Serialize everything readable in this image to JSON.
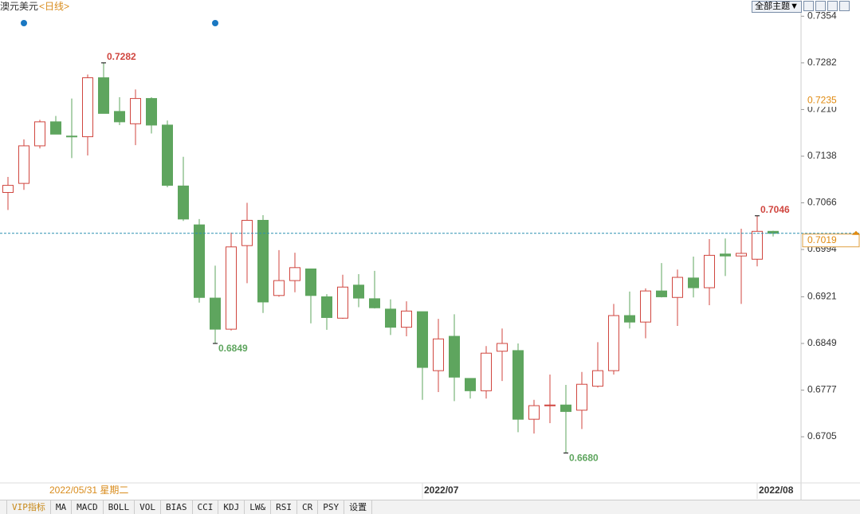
{
  "chart_data": {
    "type": "candlestick",
    "title": "澳元美元",
    "subtitle": "<日线>",
    "categories": [
      null,
      null,
      null,
      null,
      null,
      null,
      null,
      null,
      null,
      null,
      null,
      null,
      null,
      null,
      null,
      null,
      null,
      null,
      null,
      null,
      null,
      null,
      null,
      null,
      null,
      null,
      "2022/07",
      null,
      null,
      null,
      null,
      null,
      null,
      null,
      null,
      null,
      null,
      null,
      null,
      null,
      null,
      null,
      null,
      null,
      null,
      null,
      null,
      "2022/08",
      null
    ],
    "open": [
      0.7082,
      0.7096,
      0.7154,
      0.7191,
      0.7169,
      0.7168,
      0.7259,
      0.7207,
      0.7188,
      0.7227,
      0.7186,
      0.7092,
      0.7032,
      0.6919,
      0.6871,
      0.7,
      0.7039,
      0.6923,
      0.6946,
      0.6964,
      0.6921,
      0.6888,
      0.6939,
      0.6918,
      0.6902,
      0.6874,
      0.6898,
      0.6807,
      0.686,
      0.6795,
      0.6776,
      0.6837,
      0.6838,
      0.6732,
      0.6753,
      0.6754,
      0.6746,
      0.6783,
      0.6807,
      0.6892,
      0.6882,
      0.693,
      0.692,
      0.695,
      0.6935,
      0.6987,
      0.6984,
      0.6979,
      0.7022
    ],
    "high": [
      0.7106,
      0.7164,
      0.7194,
      0.72,
      0.7227,
      0.7264,
      0.7282,
      0.7229,
      0.7241,
      0.7229,
      0.7193,
      0.7137,
      0.7041,
      0.6969,
      0.702,
      0.7066,
      0.7047,
      0.6993,
      0.6989,
      0.6964,
      0.6925,
      0.6955,
      0.6956,
      0.6961,
      0.6917,
      0.6914,
      0.6898,
      0.6887,
      0.6894,
      0.6795,
      0.6845,
      0.6872,
      0.6849,
      0.6762,
      0.6801,
      0.6785,
      0.6805,
      0.6851,
      0.691,
      0.6929,
      0.6934,
      0.6973,
      0.6963,
      0.6983,
      0.701,
      0.7011,
      0.7026,
      0.7046,
      0.7023
    ],
    "low": [
      0.7055,
      0.7086,
      0.715,
      0.7172,
      0.7135,
      0.7139,
      0.7204,
      0.7186,
      0.7155,
      0.7173,
      0.709,
      0.7038,
      0.6912,
      0.6849,
      0.6869,
      0.6942,
      0.6896,
      0.6921,
      0.6928,
      0.688,
      0.687,
      0.6887,
      0.6905,
      0.6903,
      0.6862,
      0.686,
      0.6762,
      0.6774,
      0.676,
      0.6764,
      0.6764,
      0.6791,
      0.6712,
      0.671,
      0.6726,
      0.668,
      0.6717,
      0.6781,
      0.6801,
      0.6872,
      0.6857,
      0.692,
      0.6876,
      0.692,
      0.6908,
      0.6953,
      0.691,
      0.6968,
      0.7014
    ],
    "close": [
      0.7093,
      0.7154,
      0.7191,
      0.7172,
      0.7168,
      0.7259,
      0.7204,
      0.7191,
      0.7227,
      0.7186,
      0.7093,
      0.7041,
      0.692,
      0.6871,
      0.6998,
      0.7039,
      0.6913,
      0.6946,
      0.6966,
      0.6923,
      0.6889,
      0.6936,
      0.6919,
      0.6904,
      0.6874,
      0.6899,
      0.6812,
      0.6856,
      0.6797,
      0.6776,
      0.6834,
      0.6849,
      0.6732,
      0.6753,
      0.6754,
      0.6744,
      0.6786,
      0.6807,
      0.6892,
      0.6882,
      0.693,
      0.6921,
      0.6951,
      0.6935,
      0.6985,
      0.6984,
      0.6988,
      0.7022,
      0.7019
    ],
    "up_color": "#d0463f",
    "down_color": "#5ea55e",
    "ylim": [
      0.6635,
      0.7379
    ],
    "yticks": [
      0.7354,
      0.7282,
      {
        "value": 0.721,
        "label": "0.7210"
      },
      0.7138,
      0.7066,
      0.6994,
      0.6921,
      0.6849,
      0.6777,
      0.6705
    ],
    "grid": false,
    "last_price": 0.7019,
    "reference_price": 0.7235,
    "annotations": [
      {
        "index": 6,
        "value": 0.7282,
        "color": "#d0463f"
      },
      {
        "index": 13,
        "value": 0.6849,
        "color": "#5ea55e"
      },
      {
        "index": 35,
        "value": {
          "value": 0.668,
          "label": "0.6680"
        },
        "color": "#5ea55e"
      },
      {
        "index": 47,
        "value": 0.7046,
        "color": "#d0463f"
      }
    ],
    "cursor_date": "2022/05/31 星期二"
  },
  "toolbar": {
    "theme_button": "全部主题▼"
  },
  "tabs": [
    "VIP指标",
    "MA",
    "MACD",
    "BOLL",
    "VOL",
    "BIAS",
    "CCI",
    "KDJ",
    "LW&",
    "RSI",
    "CR",
    "PSY",
    "设置"
  ]
}
